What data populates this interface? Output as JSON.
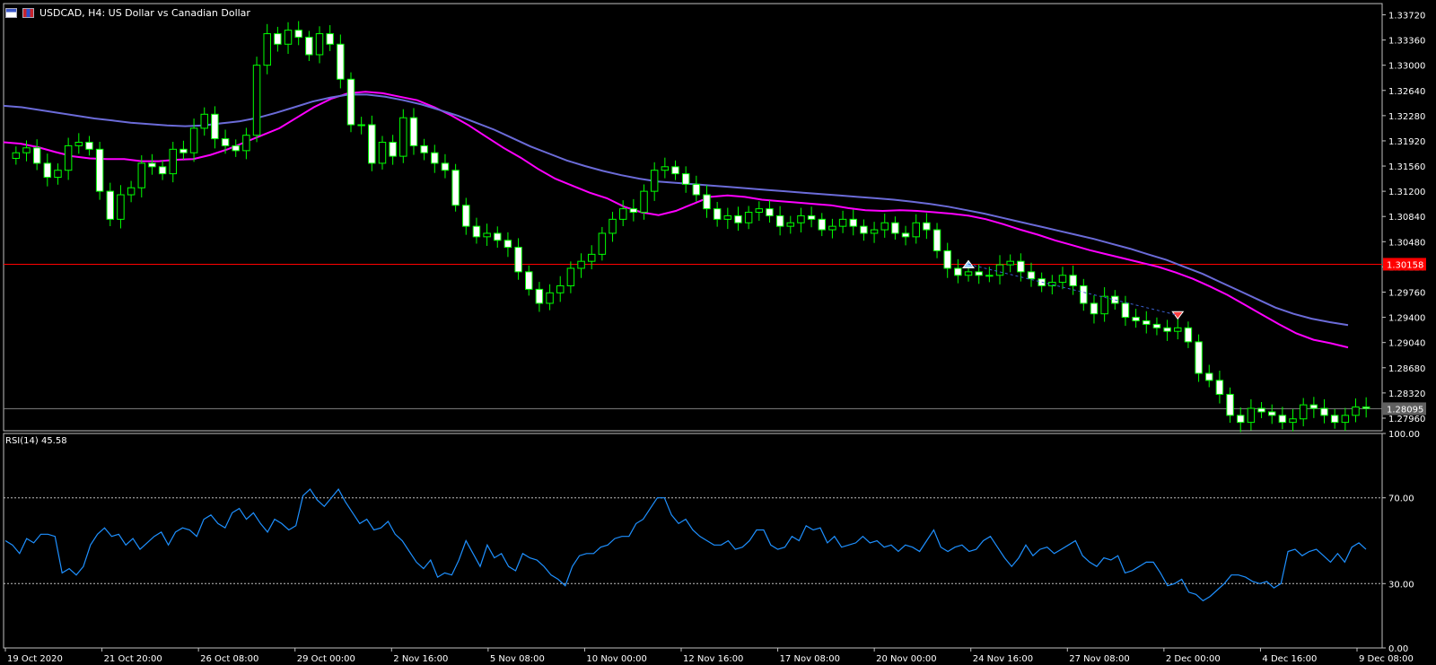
{
  "window": {
    "title": "USDCAD, H4:  US Dollar vs Canadian Dollar"
  },
  "colors": {
    "background": "#000000",
    "candle_up": "#00ff00",
    "candle_down_body": "#ffffff",
    "ma_fast": "#ff00ff",
    "ma_slow": "#6b6bd8",
    "rsi_line": "#1e90ff",
    "horizontal_line": "#ff0000",
    "bid_line": "#808080",
    "text": "#ffffff"
  },
  "price_axis": {
    "ticks": [
      "1.33720",
      "1.33360",
      "1.33000",
      "1.32640",
      "1.32280",
      "1.31920",
      "1.31560",
      "1.31200",
      "1.30840",
      "1.30480",
      "1.30120",
      "1.29760",
      "1.29400",
      "1.29040",
      "1.28680",
      "1.28320",
      "1.27960"
    ],
    "hline_label": "1.30158",
    "bid_label": "1.28095"
  },
  "rsi_panel": {
    "label": "RSI(14) 45.58",
    "ticks": [
      "100.00",
      "70.00",
      "30.00",
      "0.00"
    ],
    "levels": [
      70,
      30
    ]
  },
  "time_axis": {
    "labels": [
      "19 Oct 2020",
      "21 Oct 20:00",
      "26 Oct 08:00",
      "29 Oct 00:00",
      "2 Nov 16:00",
      "5 Nov 08:00",
      "10 Nov 00:00",
      "12 Nov 16:00",
      "17 Nov 08:00",
      "20 Nov 00:00",
      "24 Nov 16:00",
      "27 Nov 08:00",
      "2 Dec 00:00",
      "4 Dec 16:00",
      "9 Dec 08:00"
    ]
  },
  "chart_data": [
    {
      "type": "line",
      "title": "USDCAD, H4:  US Dollar vs Canadian Dollar",
      "xlabel": "",
      "ylabel": "",
      "ylim": [
        1.2778,
        1.3388
      ],
      "grid": false,
      "x_tick_labels": [
        "19 Oct 2020",
        "21 Oct 20:00",
        "26 Oct 08:00",
        "29 Oct 00:00",
        "2 Nov 16:00",
        "5 Nov 08:00",
        "10 Nov 00:00",
        "12 Nov 16:00",
        "17 Nov 08:00",
        "20 Nov 00:00",
        "24 Nov 16:00",
        "27 Nov 08:00",
        "2 Dec 00:00",
        "4 Dec 16:00",
        "9 Dec 08:00"
      ],
      "series": [
        {
          "name": "",
          "values": [
            1.3175,
            1.3182,
            1.316,
            1.314,
            1.315,
            1.3185,
            1.319,
            1.318,
            1.312,
            1.308,
            1.3115,
            1.3125,
            1.316,
            1.3155,
            1.3145,
            1.318,
            1.3175,
            1.321,
            1.323,
            1.3195,
            1.3185,
            1.3178,
            1.32,
            1.33,
            1.3345,
            1.333,
            1.335,
            1.334,
            1.3315,
            1.3345,
            1.333,
            1.328,
            1.3215,
            1.3215,
            1.316,
            1.319,
            1.317,
            1.3225,
            1.3185,
            1.3175,
            1.316,
            1.315,
            1.31,
            1.307,
            1.3055,
            1.306,
            1.305,
            1.304,
            1.3005,
            1.298,
            1.296,
            1.2975,
            1.2985,
            1.301,
            1.302,
            1.303,
            1.306,
            1.308,
            1.3095,
            1.309,
            1.312,
            1.315,
            1.3155,
            1.3145,
            1.313,
            1.3115,
            1.3095,
            1.308,
            1.3085,
            1.3075,
            1.309,
            1.3095,
            1.3085,
            1.307,
            1.3075,
            1.3085,
            1.308,
            1.3065,
            1.307,
            1.308,
            1.307,
            1.306,
            1.3065,
            1.3075,
            1.306,
            1.3055,
            1.3075,
            1.3065,
            1.3035,
            1.301,
            1.3,
            1.3005,
            1.3,
            1.3,
            1.3015,
            1.302,
            1.3005,
            1.2995,
            1.2985,
            1.299,
            1.3,
            1.2985,
            1.296,
            1.2945,
            1.297,
            1.296,
            1.294,
            1.2935,
            1.293,
            1.2925,
            1.292,
            1.2925,
            1.2905,
            1.286,
            1.285,
            1.283,
            1.28,
            1.279,
            1.281,
            1.2805,
            1.28,
            1.279,
            1.2795,
            1.2815,
            1.281,
            1.28,
            1.279,
            1.28,
            1.2812,
            1.281
          ]
        },
        {
          "name": "",
          "values": [
            1.319,
            1.3188,
            1.3183,
            1.3176,
            1.317,
            1.3167,
            1.3166,
            1.3166,
            1.3163,
            1.3163,
            1.3165,
            1.3166,
            1.3172,
            1.318,
            1.319,
            1.32,
            1.321,
            1.3225,
            1.324,
            1.3252,
            1.326,
            1.3262,
            1.326,
            1.3255,
            1.325,
            1.324,
            1.3228,
            1.3214,
            1.3198,
            1.3182,
            1.3168,
            1.3152,
            1.3138,
            1.3128,
            1.3118,
            1.311,
            1.3098,
            1.309,
            1.3086,
            1.3092,
            1.3102,
            1.3112,
            1.3114,
            1.3112,
            1.3108,
            1.3106,
            1.3104,
            1.3102,
            1.31,
            1.3096,
            1.3093,
            1.3092,
            1.3093,
            1.3092,
            1.309,
            1.3088,
            1.3085,
            1.308,
            1.3073,
            1.3065,
            1.3058,
            1.305,
            1.3043,
            1.3036,
            1.303,
            1.3024,
            1.3018,
            1.3012,
            1.3004,
            1.2995,
            1.2984,
            1.2972,
            1.2958,
            1.2944,
            1.293,
            1.2917,
            1.2908,
            1.2903,
            1.2897
          ]
        },
        {
          "name": "",
          "values": [
            1.3242,
            1.324,
            1.3236,
            1.3232,
            1.3228,
            1.3224,
            1.3221,
            1.3218,
            1.3216,
            1.3214,
            1.3213,
            1.3214,
            1.3217,
            1.322,
            1.3225,
            1.3232,
            1.324,
            1.3248,
            1.3254,
            1.3258,
            1.3258,
            1.3255,
            1.325,
            1.3244,
            1.3236,
            1.3228,
            1.3218,
            1.3208,
            1.3196,
            1.3184,
            1.3174,
            1.3164,
            1.3156,
            1.3149,
            1.3143,
            1.3138,
            1.3134,
            1.3132,
            1.313,
            1.3128,
            1.3126,
            1.3124,
            1.3122,
            1.312,
            1.3118,
            1.3116,
            1.3114,
            1.3112,
            1.311,
            1.3108,
            1.3105,
            1.3102,
            1.3098,
            1.3093,
            1.3088,
            1.3082,
            1.3076,
            1.307,
            1.3064,
            1.3058,
            1.3052,
            1.3045,
            1.3038,
            1.303,
            1.3022,
            1.3012,
            1.3002,
            1.299,
            1.2978,
            1.2966,
            1.2954,
            1.2945,
            1.2938,
            1.2933,
            1.2929
          ]
        }
      ]
    },
    {
      "type": "line",
      "title": "RSI(14) 45.58",
      "xlabel": "",
      "ylabel": "",
      "ylim": [
        0,
        100
      ],
      "grid": false,
      "series": [
        {
          "name": "",
          "values": [
            50,
            48,
            44,
            51,
            49,
            53,
            53,
            52,
            35,
            37,
            34,
            38,
            48,
            53,
            56,
            52,
            53,
            48,
            51,
            46,
            49,
            52,
            54,
            48,
            54,
            56,
            55,
            52,
            60,
            62,
            58,
            56,
            63,
            65,
            60,
            63,
            58,
            54,
            60,
            58,
            55,
            57,
            71,
            74,
            69,
            66,
            70,
            74,
            68,
            63,
            58,
            60,
            55,
            56,
            59,
            53,
            50,
            45,
            40,
            37,
            41,
            33,
            35,
            34,
            41,
            50,
            44,
            38,
            48,
            42,
            44,
            38,
            36,
            44,
            42,
            41,
            38,
            34,
            32,
            29,
            38,
            43,
            44,
            44,
            47,
            48,
            51,
            52,
            52,
            58,
            60,
            65,
            70,
            70,
            62,
            58,
            60,
            55,
            52,
            50,
            48,
            48,
            50,
            46,
            47,
            50,
            55,
            55,
            48,
            46,
            47,
            52,
            50,
            57,
            55,
            56,
            49,
            52,
            47,
            48,
            49,
            52,
            49,
            50,
            47,
            48,
            45,
            48,
            47,
            45,
            50,
            55,
            47,
            45,
            47,
            48,
            45,
            46,
            50,
            52,
            47,
            42,
            38,
            42,
            48,
            43,
            46,
            47,
            44,
            46,
            48,
            50,
            43,
            40,
            38,
            42,
            41,
            43,
            35,
            36,
            38,
            40,
            40,
            35,
            29,
            30,
            32,
            26,
            25,
            22,
            24,
            27,
            30,
            34,
            34,
            33,
            31,
            30,
            31,
            28,
            30,
            45,
            46,
            43,
            45,
            46,
            43,
            40,
            44,
            40,
            47,
            49,
            46
          ]
        }
      ]
    }
  ]
}
